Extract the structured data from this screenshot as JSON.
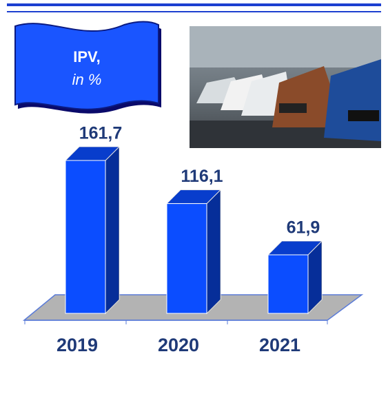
{
  "chart_data": {
    "type": "bar3d",
    "title": "IPV,",
    "subtitle": "in %",
    "categories": [
      "2019",
      "2020",
      "2021"
    ],
    "values": [
      161.7,
      116.1,
      61.9
    ],
    "value_labels": [
      "161,7",
      "116,1",
      "61,9"
    ],
    "color": "#0b4dff"
  }
}
